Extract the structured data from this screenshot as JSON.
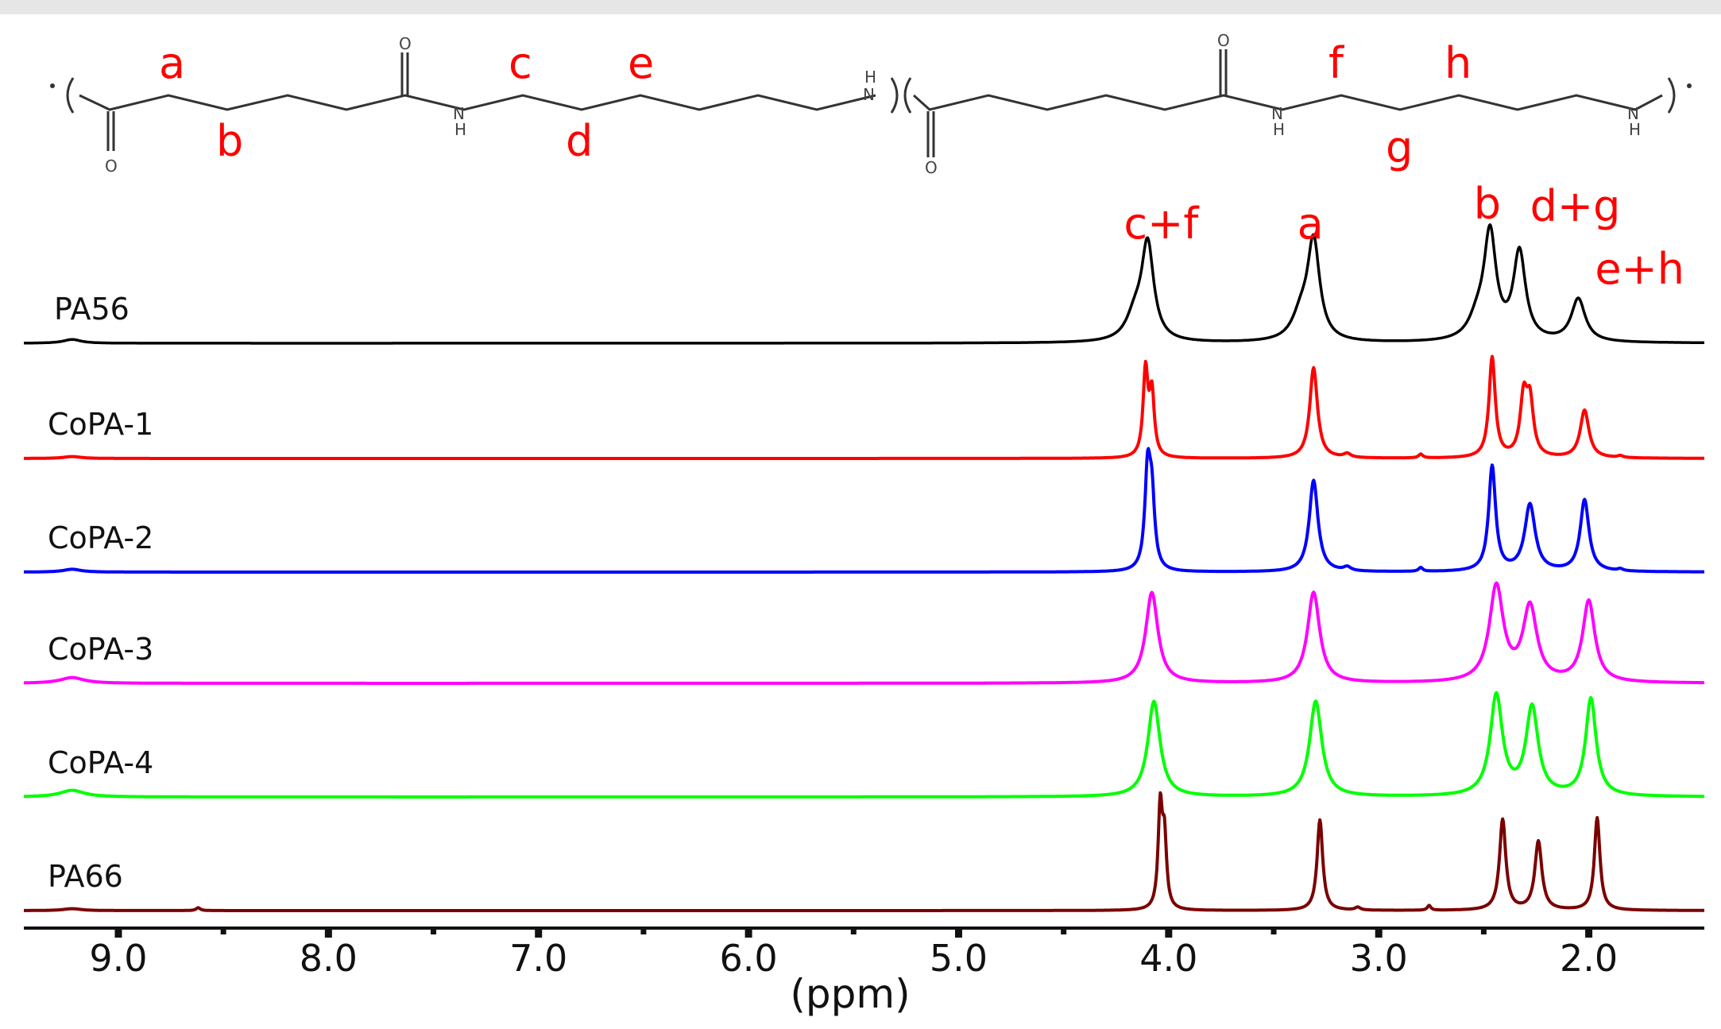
{
  "structure": {
    "atoms": {
      "o": "O",
      "n": "N",
      "h": "H"
    },
    "site_labels": [
      "a",
      "b",
      "c",
      "d",
      "e",
      "f",
      "g",
      "h"
    ]
  },
  "chart_data": {
    "type": "line",
    "title": "",
    "xlabel": "(ppm)",
    "ylabel": "",
    "xlim": [
      9.45,
      1.45
    ],
    "x_reversed": true,
    "xticks": [
      {
        "value": 9.0,
        "label": "9.0"
      },
      {
        "value": 8.0,
        "label": "8.0"
      },
      {
        "value": 7.0,
        "label": "7.0"
      },
      {
        "value": 6.0,
        "label": "6.0"
      },
      {
        "value": 5.0,
        "label": "5.0"
      },
      {
        "value": 4.0,
        "label": "4.0"
      },
      {
        "value": 3.0,
        "label": "3.0"
      },
      {
        "value": 2.0,
        "label": "2.0"
      }
    ],
    "minor_ticks": [
      8.5,
      7.5,
      6.5,
      5.5,
      4.5,
      3.5,
      2.5
    ],
    "peak_labels": [
      {
        "text": "c+f",
        "x": 4.1
      },
      {
        "text": "a",
        "x": 3.32
      },
      {
        "text": "b",
        "x": 2.48
      },
      {
        "text": "d+g",
        "x": 2.28
      },
      {
        "text": "e+h",
        "x": 1.88
      }
    ],
    "series": [
      {
        "name": "PA56",
        "color": "#000000",
        "peaks": [
          {
            "x": 9.22,
            "h": 0.04,
            "w": 0.05
          },
          {
            "x": 4.1,
            "h": 1.0,
            "w": 0.035
          },
          {
            "x": 4.16,
            "h": 0.25,
            "w": 0.05
          },
          {
            "x": 3.31,
            "h": 1.03,
            "w": 0.035
          },
          {
            "x": 3.37,
            "h": 0.25,
            "w": 0.05
          },
          {
            "x": 2.47,
            "h": 1.1,
            "w": 0.035
          },
          {
            "x": 2.53,
            "h": 0.2,
            "w": 0.05
          },
          {
            "x": 2.33,
            "h": 0.92,
            "w": 0.035
          },
          {
            "x": 2.05,
            "h": 0.45,
            "w": 0.04
          }
        ]
      },
      {
        "name": "CoPA-1",
        "color": "#ff0000",
        "peaks": [
          {
            "x": 9.22,
            "h": 0.02,
            "w": 0.05
          },
          {
            "x": 4.11,
            "h": 0.9,
            "w": 0.014
          },
          {
            "x": 4.08,
            "h": 0.65,
            "w": 0.014
          },
          {
            "x": 3.31,
            "h": 0.95,
            "w": 0.022
          },
          {
            "x": 3.15,
            "h": 0.04,
            "w": 0.02
          },
          {
            "x": 2.8,
            "h": 0.04,
            "w": 0.012
          },
          {
            "x": 2.46,
            "h": 1.05,
            "w": 0.018
          },
          {
            "x": 2.31,
            "h": 0.6,
            "w": 0.02
          },
          {
            "x": 2.28,
            "h": 0.55,
            "w": 0.02
          },
          {
            "x": 2.02,
            "h": 0.5,
            "w": 0.025
          },
          {
            "x": 1.85,
            "h": 0.02,
            "w": 0.015
          }
        ]
      },
      {
        "name": "CoPA-2",
        "color": "#0000ff",
        "peaks": [
          {
            "x": 9.22,
            "h": 0.03,
            "w": 0.05
          },
          {
            "x": 4.1,
            "h": 1.0,
            "w": 0.016
          },
          {
            "x": 4.08,
            "h": 0.7,
            "w": 0.016
          },
          {
            "x": 3.31,
            "h": 0.96,
            "w": 0.025
          },
          {
            "x": 3.15,
            "h": 0.04,
            "w": 0.02
          },
          {
            "x": 2.8,
            "h": 0.04,
            "w": 0.012
          },
          {
            "x": 2.46,
            "h": 1.1,
            "w": 0.02
          },
          {
            "x": 2.28,
            "h": 0.7,
            "w": 0.03
          },
          {
            "x": 2.02,
            "h": 0.75,
            "w": 0.025
          },
          {
            "x": 1.85,
            "h": 0.02,
            "w": 0.015
          }
        ]
      },
      {
        "name": "CoPA-3",
        "color": "#ff00ff",
        "peaks": [
          {
            "x": 9.22,
            "h": 0.06,
            "w": 0.07
          },
          {
            "x": 4.08,
            "h": 0.95,
            "w": 0.035
          },
          {
            "x": 3.31,
            "h": 0.95,
            "w": 0.035
          },
          {
            "x": 2.44,
            "h": 1.0,
            "w": 0.04
          },
          {
            "x": 2.28,
            "h": 0.78,
            "w": 0.04
          },
          {
            "x": 2.0,
            "h": 0.85,
            "w": 0.035
          }
        ]
      },
      {
        "name": "CoPA-4",
        "color": "#00ff00",
        "peaks": [
          {
            "x": 9.22,
            "h": 0.07,
            "w": 0.07
          },
          {
            "x": 4.07,
            "h": 1.0,
            "w": 0.035
          },
          {
            "x": 3.3,
            "h": 1.0,
            "w": 0.035
          },
          {
            "x": 2.44,
            "h": 1.05,
            "w": 0.035
          },
          {
            "x": 2.27,
            "h": 0.92,
            "w": 0.035
          },
          {
            "x": 1.99,
            "h": 1.02,
            "w": 0.03
          }
        ]
      },
      {
        "name": "PA66",
        "color": "#7a0000",
        "peaks": [
          {
            "x": 9.22,
            "h": 0.02,
            "w": 0.05
          },
          {
            "x": 8.62,
            "h": 0.03,
            "w": 0.012
          },
          {
            "x": 4.04,
            "h": 1.05,
            "w": 0.012
          },
          {
            "x": 4.02,
            "h": 0.7,
            "w": 0.012
          },
          {
            "x": 3.28,
            "h": 0.95,
            "w": 0.016
          },
          {
            "x": 3.1,
            "h": 0.03,
            "w": 0.015
          },
          {
            "x": 2.76,
            "h": 0.05,
            "w": 0.01
          },
          {
            "x": 2.41,
            "h": 0.95,
            "w": 0.018
          },
          {
            "x": 2.24,
            "h": 0.72,
            "w": 0.02
          },
          {
            "x": 1.96,
            "h": 0.97,
            "w": 0.016
          }
        ]
      }
    ]
  }
}
